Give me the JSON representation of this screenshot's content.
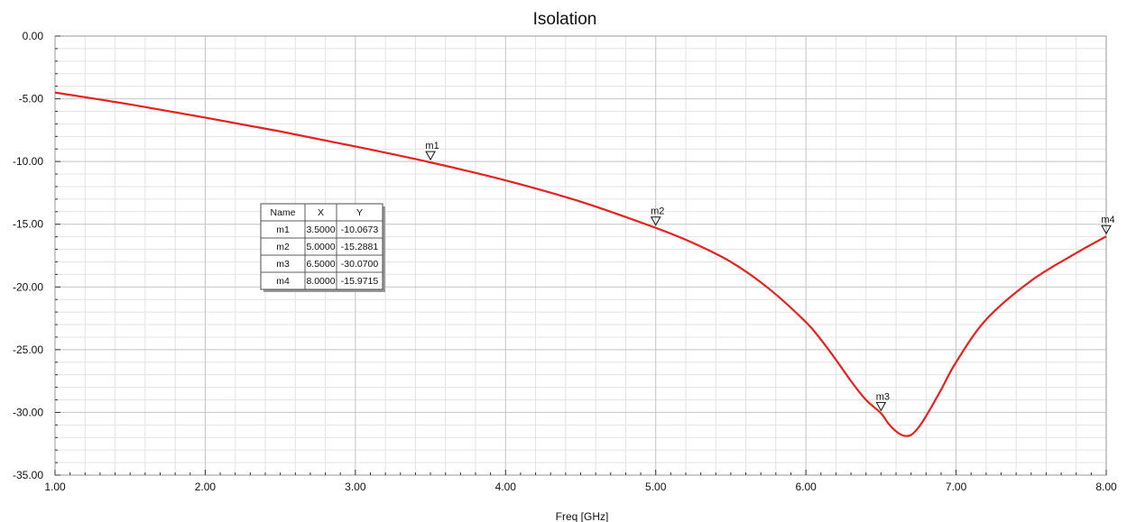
{
  "chart_data": {
    "type": "line",
    "title": "Isolation",
    "xlabel": "Freq [GHz]",
    "ylabel": "",
    "xlim": [
      1.0,
      8.0
    ],
    "ylim": [
      -35.0,
      0.0
    ],
    "x_ticks": [
      "1.00",
      "2.00",
      "3.00",
      "4.00",
      "5.00",
      "6.00",
      "7.00",
      "8.00"
    ],
    "y_ticks": [
      "0.00",
      "-5.00",
      "-10.00",
      "-15.00",
      "-20.00",
      "-25.00",
      "-30.00",
      "-35.00"
    ],
    "grid": true,
    "series": [
      {
        "color": "#e8201e",
        "x": [
          1.0,
          1.5,
          2.0,
          2.5,
          3.0,
          3.5,
          4.0,
          4.5,
          5.0,
          5.25,
          5.5,
          5.75,
          6.0,
          6.1,
          6.2,
          6.3,
          6.4,
          6.5,
          6.55,
          6.6,
          6.65,
          6.7,
          6.75,
          6.8,
          6.9,
          7.0,
          7.2,
          7.5,
          7.8,
          8.0
        ],
        "y": [
          -4.5,
          -5.45,
          -6.5,
          -7.6,
          -8.8,
          -10.07,
          -11.5,
          -13.2,
          -15.29,
          -16.5,
          -18.0,
          -20.1,
          -22.8,
          -24.2,
          -25.8,
          -27.5,
          -29.0,
          -30.07,
          -30.9,
          -31.5,
          -31.85,
          -31.8,
          -31.2,
          -30.3,
          -28.2,
          -26.0,
          -22.6,
          -19.5,
          -17.3,
          -15.97
        ]
      }
    ],
    "markers": [
      {
        "name": "m1",
        "x": 3.5,
        "y": -10.0673
      },
      {
        "name": "m2",
        "x": 5.0,
        "y": -15.2881
      },
      {
        "name": "m3",
        "x": 6.5,
        "y": -30.07
      },
      {
        "name": "m4",
        "x": 8.0,
        "y": -15.9715
      }
    ],
    "marker_table": {
      "headers": [
        "Name",
        "X",
        "Y"
      ],
      "rows": [
        [
          "m1",
          "3.5000",
          "-10.0673"
        ],
        [
          "m2",
          "5.0000",
          "-15.2881"
        ],
        [
          "m3",
          "6.5000",
          "-30.0700"
        ],
        [
          "m4",
          "8.0000",
          "-15.9715"
        ]
      ]
    }
  }
}
